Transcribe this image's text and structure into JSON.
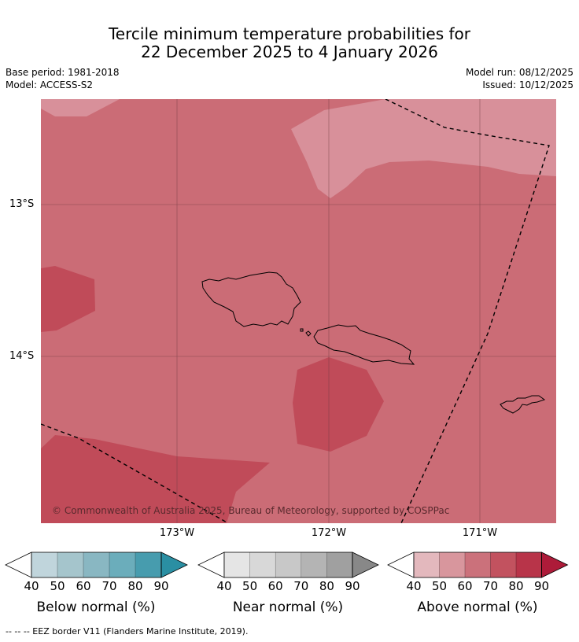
{
  "title": {
    "line1": "Tercile minimum temperature probabilities for",
    "line2": "22 December 2025 to 4 January 2026"
  },
  "meta": {
    "base_period": "Base period: 1981-2018",
    "model": "Model: ACCESS-S2",
    "model_run": "Model run: 08/12/2025",
    "issued": "Issued: 10/12/2025"
  },
  "map": {
    "lat_labels": [
      "13°S",
      "14°S"
    ],
    "lon_labels": [
      "173°W",
      "172°W",
      "171°W"
    ],
    "copyright": "© Commonwealth of Australia 2025, Bureau of Meteorology, supported by COSPPac",
    "colors": {
      "above_60_70": "#cb6c76",
      "above_50_60": "#d8909a",
      "above_70_80": "#c04b59"
    }
  },
  "colorbars": [
    {
      "label": "Below normal (%)",
      "ticks": [
        "40",
        "50",
        "60",
        "70",
        "80",
        "90"
      ],
      "colors": [
        "#c0d5dc",
        "#a5c5cc",
        "#89b7c2",
        "#6badbb",
        "#479cae",
        "#2a8fa3"
      ]
    },
    {
      "label": "Near normal (%)",
      "ticks": [
        "40",
        "50",
        "60",
        "70",
        "80",
        "90"
      ],
      "colors": [
        "#e5e5e5",
        "#d8d8d8",
        "#c8c8c8",
        "#b4b4b4",
        "#a0a0a0",
        "#888888"
      ]
    },
    {
      "label": "Above normal (%)",
      "ticks": [
        "40",
        "50",
        "60",
        "70",
        "80",
        "90"
      ],
      "colors": [
        "#e3b8bd",
        "#d8969d",
        "#cb717b",
        "#c2525f",
        "#b83449",
        "#ad1b39"
      ]
    }
  ],
  "footnote": "--  --  -- EEZ border V11 (Flanders Marine Institute, 2019)."
}
